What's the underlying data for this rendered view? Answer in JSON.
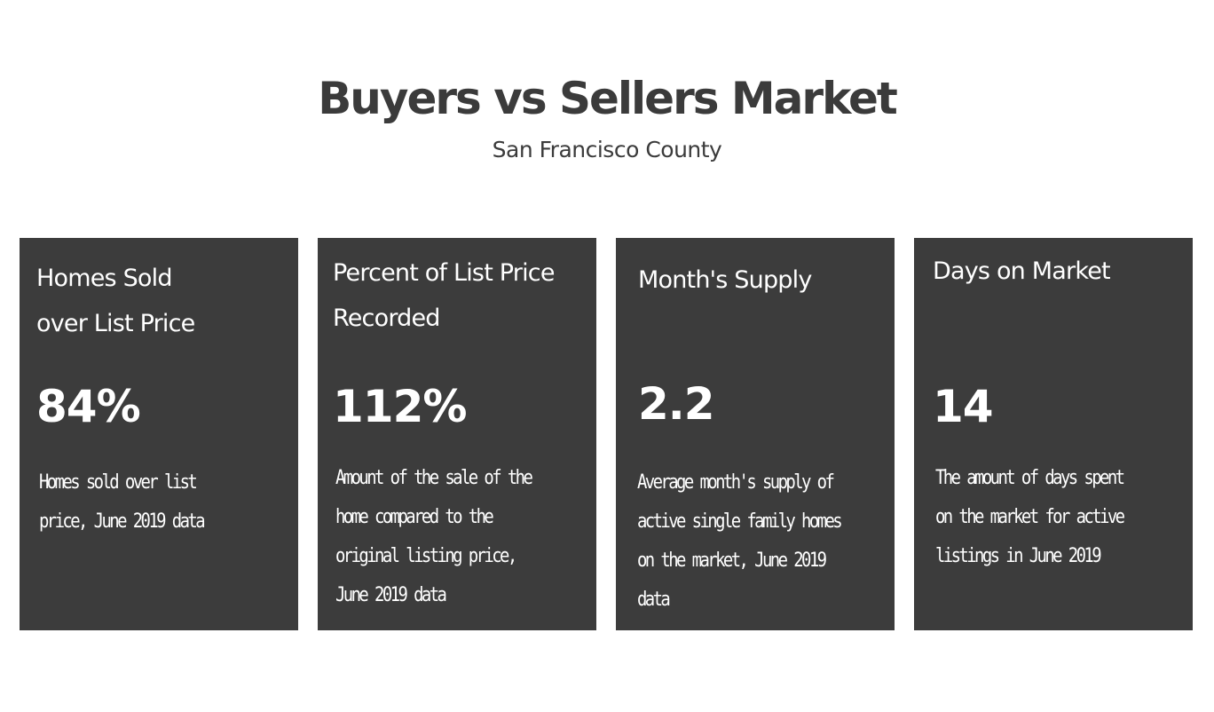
{
  "header": {
    "title": "Buyers vs Sellers Market",
    "subtitle": "San Francisco County"
  },
  "cards": [
    {
      "title": "Homes Sold\nover List Price",
      "value": "84%",
      "description": "Homes sold over list price, June 2019 data"
    },
    {
      "title": "Percent of List Price\nRecorded",
      "value": "112%",
      "description": "Amount of the sale of the home compared to the original listing price, June 2019 data"
    },
    {
      "title": "Month's Supply",
      "value": "2.2",
      "description": "Average month's supply of active single family homes on the market, June 2019 data"
    },
    {
      "title": "Days on Market",
      "value": "14",
      "description": "The amount of days spent on the market for active listings in June 2019"
    }
  ],
  "colors": {
    "card_background": "#3c3c3c",
    "heading_text": "#3b3b3b",
    "card_text": "#ffffff",
    "page_background": "#ffffff"
  }
}
